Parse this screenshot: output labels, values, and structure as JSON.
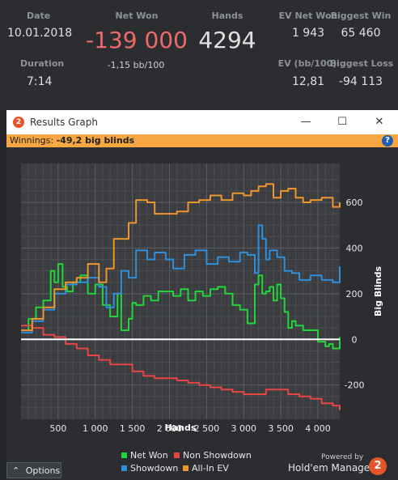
{
  "stats": {
    "date_label": "Date",
    "date_value": "10.01.2018",
    "duration_label": "Duration",
    "duration_value": "7:14",
    "net_won_label": "Net Won",
    "net_won_value": "-139 000",
    "bb_per_100": "-1,15 bb/100",
    "hands_label": "Hands",
    "hands_value": "4294",
    "ev_net_won_label": "EV Net Won",
    "ev_net_won_value": "1 943",
    "ev_bb100_label": "EV (bb/100)",
    "ev_bb100_value": "12,81",
    "biggest_win_label": "Biggest Win",
    "biggest_win_value": "65 460",
    "biggest_loss_label": "Biggest Loss",
    "biggest_loss_value": "-94 113"
  },
  "window": {
    "title": "Results Graph",
    "app_icon": "hm2-logo-icon",
    "minimize": "—",
    "maximize": "☐",
    "close": "✕",
    "winnings_label": "Winnings:",
    "winnings_value": "-49,2 big blinds",
    "help": "?"
  },
  "footer": {
    "options_label": "Options",
    "options_icon": "chevron-up-icon",
    "powered_by": "Powered by",
    "brand": "Hold'em Manager",
    "brand_logo": "2"
  },
  "colors": {
    "net_won": "#22d63a",
    "non_showdown": "#e84545",
    "showdown": "#2e8fdc",
    "all_in_ev": "#f0962f",
    "zero_line": "#ffffff",
    "winnings_bar": "#f6a741"
  },
  "chart_data": {
    "type": "line",
    "xlabel": "Hands",
    "ylabel": "Big Blinds",
    "xlim": [
      0,
      4294
    ],
    "ylim": [
      -350,
      770
    ],
    "xticks": [
      500,
      1000,
      1500,
      2000,
      2500,
      3000,
      3500,
      4000
    ],
    "xtick_labels": [
      "500",
      "1 000",
      "1 500",
      "2 000",
      "2 500",
      "3 000",
      "3 500",
      "4 000"
    ],
    "yticks": [
      -200,
      0,
      200,
      400,
      600
    ],
    "ytick_labels": [
      "-200",
      "0",
      "200",
      "400",
      "600"
    ],
    "grid": true,
    "legend_position": "bottom",
    "series": [
      {
        "name": "Net Won",
        "color": "#22d63a",
        "x": [
          0,
          100,
          200,
          300,
          400,
          450,
          500,
          560,
          620,
          700,
          800,
          900,
          1000,
          1100,
          1200,
          1300,
          1350,
          1450,
          1500,
          1550,
          1650,
          1750,
          1850,
          1950,
          2050,
          2150,
          2250,
          2350,
          2450,
          2550,
          2650,
          2750,
          2850,
          2950,
          3050,
          3150,
          3200,
          3250,
          3300,
          3350,
          3400,
          3450,
          3500,
          3550,
          3600,
          3650,
          3700,
          3800,
          3900,
          4000,
          4100,
          4150,
          4200,
          4294
        ],
        "y": [
          40,
          90,
          140,
          170,
          300,
          250,
          330,
          230,
          210,
          250,
          280,
          200,
          240,
          150,
          100,
          200,
          40,
          90,
          160,
          150,
          190,
          170,
          210,
          210,
          190,
          220,
          170,
          210,
          190,
          220,
          230,
          200,
          150,
          130,
          70,
          240,
          280,
          200,
          210,
          230,
          170,
          240,
          180,
          120,
          50,
          80,
          60,
          40,
          40,
          -10,
          -30,
          -20,
          -40,
          10
        ]
      },
      {
        "name": "Non Showdown",
        "color": "#e84545",
        "x": [
          0,
          150,
          300,
          450,
          600,
          750,
          900,
          1050,
          1200,
          1350,
          1500,
          1650,
          1800,
          1950,
          2100,
          2250,
          2400,
          2550,
          2700,
          2850,
          3000,
          3150,
          3300,
          3450,
          3600,
          3750,
          3900,
          4050,
          4200,
          4294
        ],
        "y": [
          60,
          50,
          20,
          10,
          -20,
          -40,
          -70,
          -90,
          -110,
          -110,
          -140,
          -160,
          -170,
          -170,
          -180,
          -190,
          -200,
          -210,
          -220,
          -230,
          -240,
          -240,
          -220,
          -220,
          -240,
          -250,
          -260,
          -280,
          -290,
          -310
        ]
      },
      {
        "name": "Showdown",
        "color": "#2e8fdc",
        "x": [
          0,
          150,
          300,
          450,
          600,
          750,
          900,
          1050,
          1150,
          1250,
          1350,
          1450,
          1550,
          1700,
          1800,
          1950,
          2050,
          2200,
          2350,
          2500,
          2650,
          2800,
          2950,
          3050,
          3150,
          3200,
          3250,
          3300,
          3350,
          3450,
          3550,
          3650,
          3750,
          3900,
          4050,
          4200,
          4294
        ],
        "y": [
          30,
          80,
          130,
          200,
          240,
          250,
          270,
          230,
          140,
          200,
          300,
          270,
          390,
          350,
          380,
          350,
          310,
          370,
          390,
          330,
          360,
          340,
          380,
          370,
          290,
          500,
          440,
          350,
          390,
          360,
          300,
          290,
          260,
          280,
          260,
          250,
          320
        ]
      },
      {
        "name": "All-In EV",
        "color": "#f0962f",
        "x": [
          0,
          150,
          300,
          450,
          600,
          750,
          900,
          1050,
          1150,
          1250,
          1350,
          1450,
          1550,
          1700,
          1800,
          1950,
          2100,
          2250,
          2400,
          2550,
          2700,
          2850,
          3000,
          3100,
          3200,
          3300,
          3400,
          3500,
          3600,
          3700,
          3800,
          3900,
          4050,
          4200,
          4294
        ],
        "y": [
          40,
          90,
          140,
          220,
          250,
          270,
          330,
          250,
          310,
          440,
          440,
          510,
          610,
          600,
          550,
          550,
          560,
          600,
          610,
          630,
          610,
          640,
          630,
          650,
          670,
          680,
          620,
          650,
          660,
          620,
          600,
          610,
          620,
          580,
          600
        ]
      }
    ]
  }
}
